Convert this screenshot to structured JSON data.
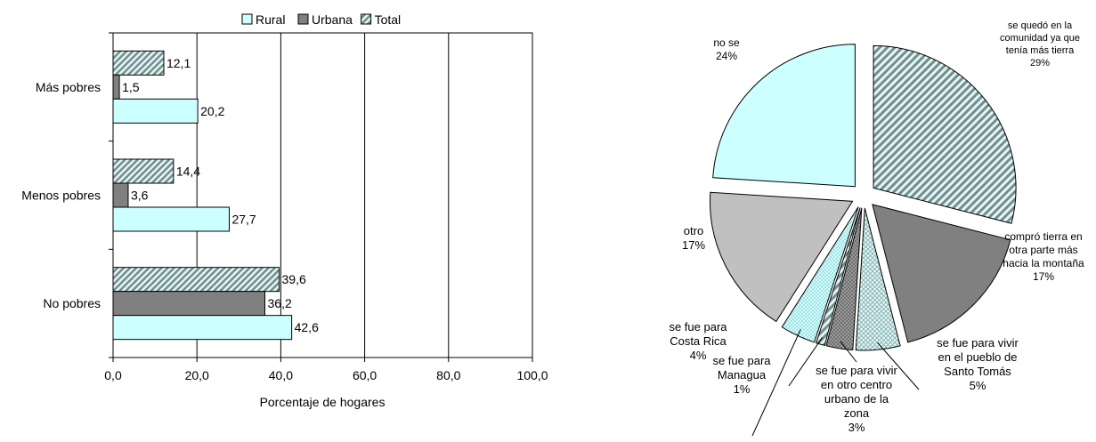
{
  "chart_data": [
    {
      "type": "bar",
      "orientation": "horizontal",
      "categories": [
        "Más pobres",
        "Menos pobres",
        "No pobres"
      ],
      "series": [
        {
          "name": "Rural",
          "values": [
            20.2,
            27.7,
            42.6
          ],
          "color": "#ccffff",
          "pattern": "solid"
        },
        {
          "name": "Urbana",
          "values": [
            1.5,
            3.6,
            36.2
          ],
          "color": "#808080",
          "pattern": "solid"
        },
        {
          "name": "Total",
          "values": [
            12.1,
            14.4,
            39.6
          ],
          "color": "#a6c8c8",
          "pattern": "diagonal-stripes"
        }
      ],
      "value_labels": {
        "Rural": [
          "20,2",
          "27,7",
          "42,6"
        ],
        "Urbana": [
          "1,5",
          "3,6",
          "36,2"
        ],
        "Total": [
          "12,1",
          "14,4",
          "39,6"
        ]
      },
      "xlabel": "Porcentaje de hogares",
      "xlim": [
        0,
        100
      ],
      "xticks": [
        0,
        20,
        40,
        60,
        80,
        100
      ],
      "xtick_labels": [
        "0,0",
        "20,0",
        "40,0",
        "60,0",
        "80,0",
        "100,0"
      ],
      "grid": "vertical",
      "legend_position": "top"
    },
    {
      "type": "pie",
      "slices": [
        {
          "label": "se quedó en la comunidad ya que tenía más tierra",
          "lines": [
            "se quedó en la",
            "comunidad ya que",
            "tenía más tierra",
            "29%"
          ],
          "value": 29,
          "color": "#a6c8c8",
          "pattern": "diagonal-stripes"
        },
        {
          "label": "compró tierra en otra parte más hacia la montaña",
          "lines": [
            "compró tierra en",
            "otra parte más",
            "hacia la montaña",
            "17%"
          ],
          "value": 17,
          "color": "#808080",
          "pattern": "solid"
        },
        {
          "label": "se fue para vivir en el pueblo de Santo Tomás",
          "lines": [
            "se fue para vivir",
            "en el pueblo de",
            "Santo Tomás",
            "5%"
          ],
          "value": 5,
          "color": "#d9f4f4",
          "pattern": "crosshatch"
        },
        {
          "label": "se fue para vivir en otro centro urbano de la zona",
          "lines": [
            "se fue para vivir",
            "en otro centro",
            "urbano de la",
            "zona",
            "3%"
          ],
          "value": 3,
          "color": "#7a7a7a",
          "pattern": "dots"
        },
        {
          "label": "se fue para Managua",
          "lines": [
            "se fue para",
            "Managua",
            "1%"
          ],
          "value": 1,
          "color": "#b8d8d8",
          "pattern": "diagonal-stripes"
        },
        {
          "label": "se fue para Costa Rica",
          "lines": [
            "se fue para",
            "Costa Rica",
            "4%"
          ],
          "value": 4,
          "color": "#ccffff",
          "pattern": "dots"
        },
        {
          "label": "otro",
          "lines": [
            "otro",
            "17%"
          ],
          "value": 17,
          "color": "#c0c0c0",
          "pattern": "solid"
        },
        {
          "label": "no se",
          "lines": [
            "no se",
            "24%"
          ],
          "value": 24,
          "color": "#ccffff",
          "pattern": "solid"
        }
      ],
      "exploded": true
    }
  ]
}
